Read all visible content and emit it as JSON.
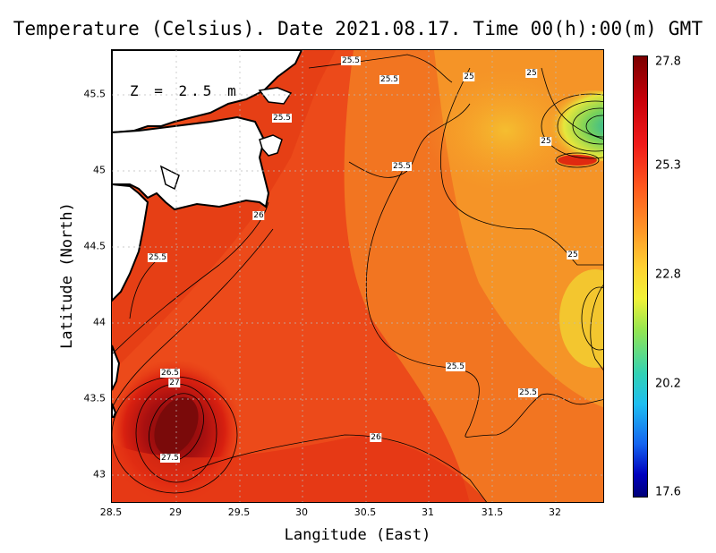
{
  "title": "Temperature (Celsius). Date 2021.08.17. Time 00(h):00(m) GMT",
  "depth_label": "Z = 2.5 m",
  "axes": {
    "xlabel": "Langitude (East)",
    "ylabel": "Latitude (North)",
    "x_ticks": [
      "28.5",
      "29",
      "29.5",
      "30",
      "30.5",
      "31",
      "31.5",
      "32"
    ],
    "y_ticks": [
      "45.5",
      "45",
      "44.5",
      "44",
      "43.5",
      "43"
    ]
  },
  "colorbar": {
    "ticks": [
      "27.8",
      "25.3",
      "22.8",
      "20.2",
      "17.6"
    ],
    "min": 17.6,
    "max": 27.8
  },
  "contour_labels": [
    "25.5",
    "25.5",
    "25",
    "25",
    "25.5",
    "25",
    "25.5",
    "26",
    "25.5",
    "25",
    "26.5",
    "27",
    "27.5",
    "25.5",
    "25.5",
    "26"
  ],
  "colors": {
    "sea_main": "#f0501e",
    "sea_warm": "#e83a14",
    "sea_cool": "#f7a028",
    "hot_core": "#8a0a0a",
    "cold_eddy": "#3cc8a0",
    "land": "#ffffff",
    "coast": "#000000"
  }
}
